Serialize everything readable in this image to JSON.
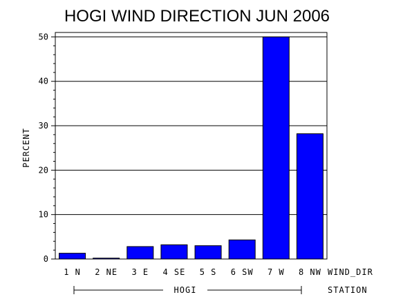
{
  "chart_data": {
    "type": "bar",
    "title": "HOGI WIND DIRECTION JUN 2006",
    "ylabel": "PERCENT",
    "xlabel": "WIND_DIR",
    "group_label_name": "STATION",
    "group_label": "HOGI",
    "categories": [
      "1 N",
      "2 NE",
      "3 E",
      "4 SE",
      "5 S",
      "6 SW",
      "7 W",
      "8 NW"
    ],
    "values": [
      1.3,
      0.2,
      2.8,
      3.2,
      3.0,
      4.3,
      50.0,
      28.2
    ],
    "ylim": [
      0,
      51
    ],
    "yticks": [
      "0",
      "10",
      "20",
      "30",
      "40",
      "50"
    ],
    "ytick_values": [
      0,
      10,
      20,
      30,
      40,
      50
    ],
    "grid": true,
    "bar_color": "#0000ff"
  }
}
